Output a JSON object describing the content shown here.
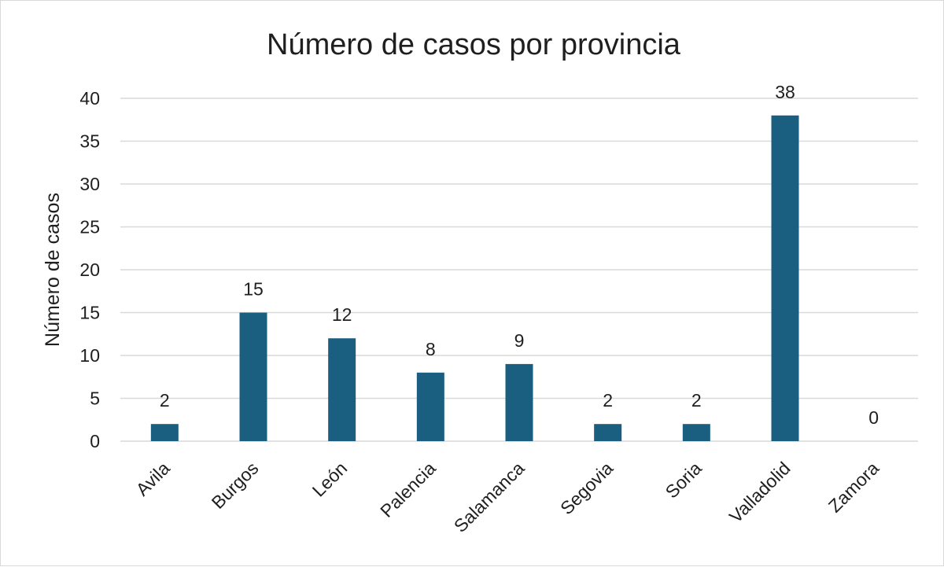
{
  "chart_data": {
    "type": "bar",
    "title": "Número de casos por provincia",
    "xlabel": "",
    "ylabel": "Número de casos",
    "categories": [
      "Avila",
      "Burgos",
      "León",
      "Palencia",
      "Salamanca",
      "Segovia",
      "Soria",
      "Valladolid",
      "Zamora"
    ],
    "values": [
      2,
      15,
      12,
      8,
      9,
      2,
      2,
      38,
      0
    ],
    "ylim": [
      0,
      40
    ],
    "yticks": [
      0,
      5,
      10,
      15,
      20,
      25,
      30,
      35,
      40
    ],
    "grid": true,
    "legend": "none",
    "bar_color": "#1a5e80"
  }
}
